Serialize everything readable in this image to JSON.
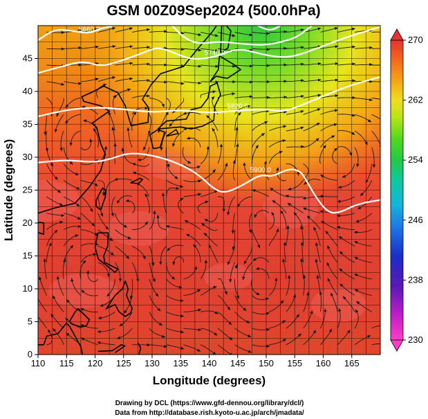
{
  "chart_data": {
    "type": "heatmap",
    "title": "GSM 00Z09Sep2024 (500.0hPa)",
    "xlabel": "Longitude (degrees)",
    "ylabel": "Latitude  (degrees)",
    "xlim": [
      110,
      170
    ],
    "ylim": [
      0,
      50
    ],
    "x_ticks": [
      110,
      115,
      120,
      125,
      130,
      135,
      140,
      145,
      150,
      155,
      160,
      165
    ],
    "y_ticks": [
      0,
      5,
      10,
      15,
      20,
      25,
      30,
      35,
      40,
      45
    ],
    "colorbar": {
      "min": 230,
      "max": 270,
      "ticks": [
        230,
        238,
        246,
        254,
        262,
        270
      ]
    },
    "contours": [
      {
        "label": "5900.0",
        "points": [
          [
            110,
            29.2
          ],
          [
            115,
            29.6
          ],
          [
            120,
            29.2
          ],
          [
            123,
            29.8
          ],
          [
            126,
            30.7
          ],
          [
            130,
            30.3
          ],
          [
            134,
            29.3
          ],
          [
            138,
            27.5
          ],
          [
            141,
            25.0
          ],
          [
            143,
            24.6
          ],
          [
            146,
            25.8
          ],
          [
            149,
            27.4
          ],
          [
            151,
            27.0
          ],
          [
            154,
            28.3
          ],
          [
            156,
            27.9
          ],
          [
            157,
            26.5
          ],
          [
            159,
            23.5
          ],
          [
            161,
            21.5
          ],
          [
            163,
            21.6
          ],
          [
            166,
            22.9
          ],
          [
            170,
            23.5
          ]
        ]
      },
      {
        "label": "5820.0",
        "points": [
          [
            110,
            36.2
          ],
          [
            115,
            37.2
          ],
          [
            120,
            37.6
          ],
          [
            125,
            37.3
          ],
          [
            130,
            36.8
          ],
          [
            135,
            37.2
          ],
          [
            140,
            36.7
          ],
          [
            145,
            37.1
          ],
          [
            150,
            37.3
          ],
          [
            153,
            36.9
          ],
          [
            156,
            37.8
          ],
          [
            160,
            39.3
          ],
          [
            165,
            41.0
          ],
          [
            170,
            42.2
          ]
        ]
      },
      {
        "label": "5740.0",
        "points": [
          [
            110,
            42.8
          ],
          [
            115,
            44.0
          ],
          [
            118,
            44.6
          ],
          [
            121,
            43.8
          ],
          [
            124,
            44.5
          ],
          [
            128,
            45.7
          ],
          [
            131,
            46.8
          ],
          [
            134,
            45.8
          ],
          [
            137,
            44.8
          ],
          [
            141,
            45.2
          ],
          [
            145,
            46.6
          ],
          [
            149,
            45.7
          ],
          [
            152,
            45.2
          ],
          [
            155,
            45.3
          ],
          [
            160,
            46.9
          ],
          [
            164,
            48.2
          ],
          [
            168,
            49.3
          ],
          [
            170,
            49.8
          ]
        ]
      },
      {
        "label": "5660.0",
        "points": [
          [
            110,
            47.8
          ],
          [
            113,
            49.5
          ],
          [
            116,
            49.2
          ],
          [
            119,
            48.8
          ],
          [
            121,
            49.6
          ],
          [
            123,
            49.9
          ]
        ]
      },
      {
        "label": "",
        "points": [
          [
            133.5,
            50
          ],
          [
            135.5,
            48.2
          ],
          [
            138,
            47.2
          ],
          [
            142,
            47.6
          ],
          [
            146,
            47.2
          ],
          [
            150,
            47.0
          ],
          [
            154,
            47.8
          ],
          [
            156,
            48.6
          ],
          [
            158,
            50
          ]
        ]
      },
      {
        "label": "",
        "points": [
          [
            148.5,
            50
          ],
          [
            150.3,
            49.3
          ],
          [
            151.5,
            49.5
          ],
          [
            152.5,
            50
          ]
        ]
      }
    ]
  }
}
